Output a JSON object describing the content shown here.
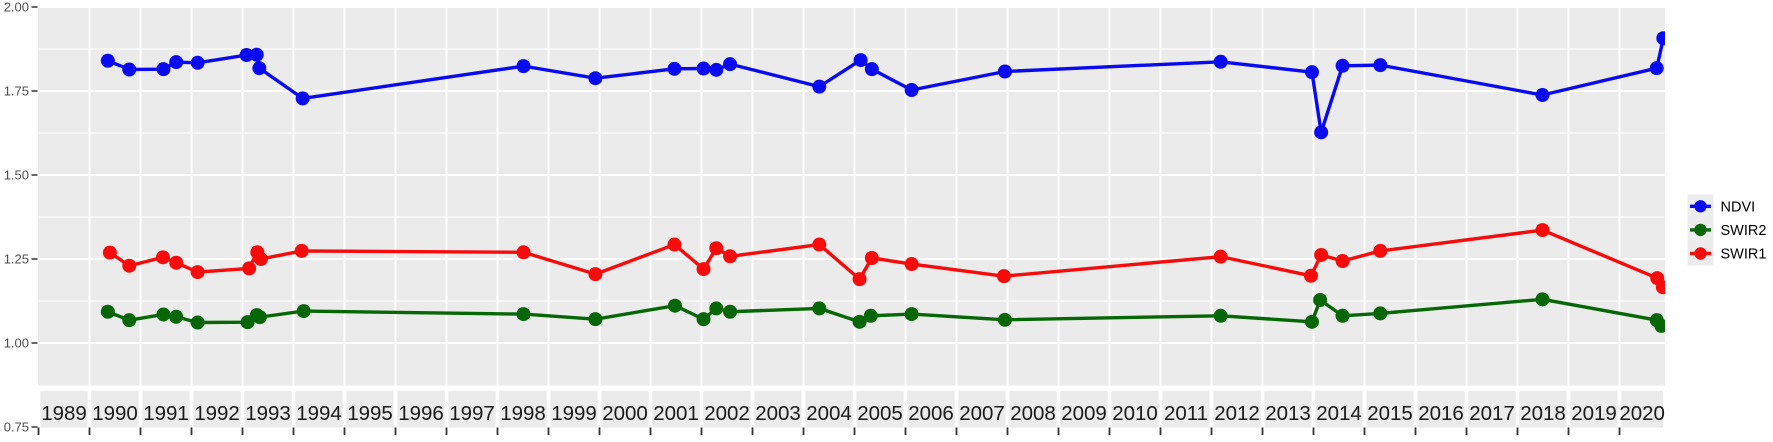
{
  "chart": {
    "background": "#FFFFFF",
    "panel_bg": "#EBEBEB",
    "grid_color": "#FFFFFF",
    "tick_color": "#333333",
    "y_axis_text_color": "#4D4D4D",
    "x_axis_text_color": "#1A1A1A",
    "legend_key_bg": "#ECECEC"
  },
  "chart_data": {
    "type": "line",
    "title": "",
    "xlabel": "",
    "ylabel": "",
    "xlim": [
      1989,
      2021
    ],
    "ylim": [
      0.75,
      2.0
    ],
    "grid": "white major and minor gridlines on gray panel",
    "legend_position": "right",
    "y_ticks": [
      0.75,
      1.0,
      1.25,
      1.5,
      1.75,
      2.0
    ],
    "y_tick_labels": [
      "0.75",
      "1.00",
      "1.25",
      "1.50",
      "1.75",
      "2.00"
    ],
    "x_tick_labels": [
      "1989",
      "1990",
      "1991",
      "1992",
      "1993",
      "1994",
      "1995",
      "1996",
      "1997",
      "1998",
      "1999",
      "2000",
      "2001",
      "2002",
      "2003",
      "2004",
      "2005",
      "2006",
      "2007",
      "2008",
      "2009",
      "2010",
      "2011",
      "2012",
      "2013",
      "2014",
      "2015",
      "2016",
      "2017",
      "2018",
      "2019",
      "2020"
    ],
    "series": [
      {
        "name": "NDVI",
        "color": "#0A0AF0",
        "x": [
          1990.36,
          1990.78,
          1991.45,
          1991.7,
          1992.12,
          1993.08,
          1993.28,
          1993.33,
          1994.18,
          1998.51,
          1999.92,
          2001.47,
          2002.04,
          2002.29,
          2002.56,
          2004.31,
          2005.12,
          2005.34,
          2006.12,
          2007.95,
          2012.18,
          2013.97,
          2014.15,
          2014.57,
          2015.31,
          2018.49,
          2020.73,
          2020.86
        ],
        "y": [
          1.84,
          1.814,
          1.815,
          1.836,
          1.834,
          1.857,
          1.858,
          1.818,
          1.728,
          1.824,
          1.788,
          1.816,
          1.817,
          1.813,
          1.83,
          1.763,
          1.842,
          1.815,
          1.753,
          1.808,
          1.837,
          1.806,
          1.627,
          1.825,
          1.827,
          1.738,
          1.818,
          1.907
        ]
      },
      {
        "name": "SWIR2",
        "color": "#076707",
        "x": [
          1990.36,
          1990.78,
          1991.45,
          1991.7,
          1992.12,
          1993.1,
          1993.28,
          1993.34,
          1994.2,
          1998.51,
          1999.92,
          2001.48,
          2002.04,
          2002.29,
          2002.56,
          2004.31,
          2005.1,
          2005.32,
          2006.12,
          2007.95,
          2012.18,
          2013.97,
          2014.13,
          2014.57,
          2015.31,
          2018.49,
          2020.73,
          2020.82
        ],
        "y": [
          1.093,
          1.068,
          1.085,
          1.078,
          1.061,
          1.062,
          1.083,
          1.077,
          1.095,
          1.086,
          1.071,
          1.111,
          1.071,
          1.103,
          1.093,
          1.103,
          1.063,
          1.081,
          1.086,
          1.069,
          1.081,
          1.063,
          1.128,
          1.081,
          1.088,
          1.13,
          1.068,
          1.051
        ]
      },
      {
        "name": "SWIR1",
        "color": "#F70B0B",
        "x": [
          1990.4,
          1990.78,
          1991.44,
          1991.7,
          1992.12,
          1993.13,
          1993.29,
          1993.36,
          1994.16,
          1998.51,
          1999.92,
          2001.47,
          2002.04,
          2002.29,
          2002.56,
          2004.31,
          2005.1,
          2005.34,
          2006.12,
          2007.93,
          2012.18,
          2013.95,
          2014.15,
          2014.57,
          2015.31,
          2018.49,
          2020.74,
          2020.85
        ],
        "y": [
          1.269,
          1.23,
          1.255,
          1.239,
          1.211,
          1.222,
          1.27,
          1.25,
          1.274,
          1.27,
          1.205,
          1.293,
          1.22,
          1.282,
          1.258,
          1.293,
          1.19,
          1.253,
          1.235,
          1.199,
          1.257,
          1.2,
          1.262,
          1.244,
          1.274,
          1.336,
          1.193,
          1.166
        ]
      }
    ]
  },
  "legend": {
    "items": [
      {
        "label": "NDVI",
        "color": "#0A0AF0"
      },
      {
        "label": "SWIR2",
        "color": "#076707"
      },
      {
        "label": "SWIR1",
        "color": "#F70B0B"
      }
    ]
  }
}
